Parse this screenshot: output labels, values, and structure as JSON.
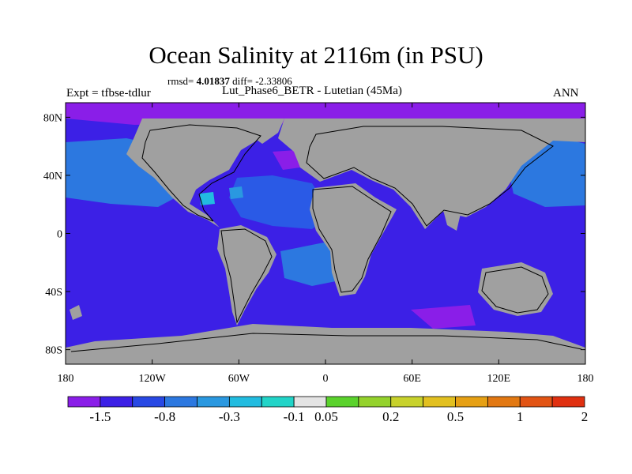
{
  "title": "Ocean Salinity at 2116m (in PSU)",
  "stats": {
    "rmsd_label": "rmsd=",
    "rmsd_value": "4.01837",
    "diff_label": "diff=",
    "diff_value": "-2.33806"
  },
  "experiment": "Expt = tfbse-tdlur",
  "subtitle": "Lut_Phase6_BETR - Lutetian (45Ma)",
  "season": "ANN",
  "map": {
    "lon_range": [
      -180,
      180
    ],
    "lat_range": [
      -90,
      90
    ],
    "lat_ticks": [
      {
        "lat": 80,
        "label": "80N"
      },
      {
        "lat": 40,
        "label": "40N"
      },
      {
        "lat": 0,
        "label": "0"
      },
      {
        "lat": -40,
        "label": "40S"
      },
      {
        "lat": -80,
        "label": "80S"
      }
    ],
    "lon_ticks": [
      {
        "lon": -180,
        "label": "180"
      },
      {
        "lon": -120,
        "label": "120W"
      },
      {
        "lon": -60,
        "label": "60W"
      },
      {
        "lon": 0,
        "label": "0"
      },
      {
        "lon": 60,
        "label": "60E"
      },
      {
        "lon": 120,
        "label": "120E"
      },
      {
        "lon": 180,
        "label": "180"
      }
    ],
    "land_color": "#a0a0a0",
    "ocean_color": "#3c20e6"
  },
  "colorbar": {
    "colors": [
      "#8a1ee8",
      "#3c20e6",
      "#2848e4",
      "#2c78e0",
      "#2a98e0",
      "#22bce0",
      "#22d4c8",
      "#e4e4e4",
      "#5ad22c",
      "#94d22c",
      "#c8d22c",
      "#e2c020",
      "#e6a014",
      "#e27812",
      "#e25414",
      "#e03010"
    ],
    "labels": [
      {
        "boundary": 1,
        "text": "-1.5"
      },
      {
        "boundary": 3,
        "text": "-0.8"
      },
      {
        "boundary": 5,
        "text": "-0.3"
      },
      {
        "boundary": 7,
        "text": "-0.1"
      },
      {
        "boundary": 8,
        "text": "0.05"
      },
      {
        "boundary": 10,
        "text": "0.2"
      },
      {
        "boundary": 12,
        "text": "0.5"
      },
      {
        "boundary": 14,
        "text": "1"
      },
      {
        "boundary": 16,
        "text": "2"
      }
    ]
  }
}
